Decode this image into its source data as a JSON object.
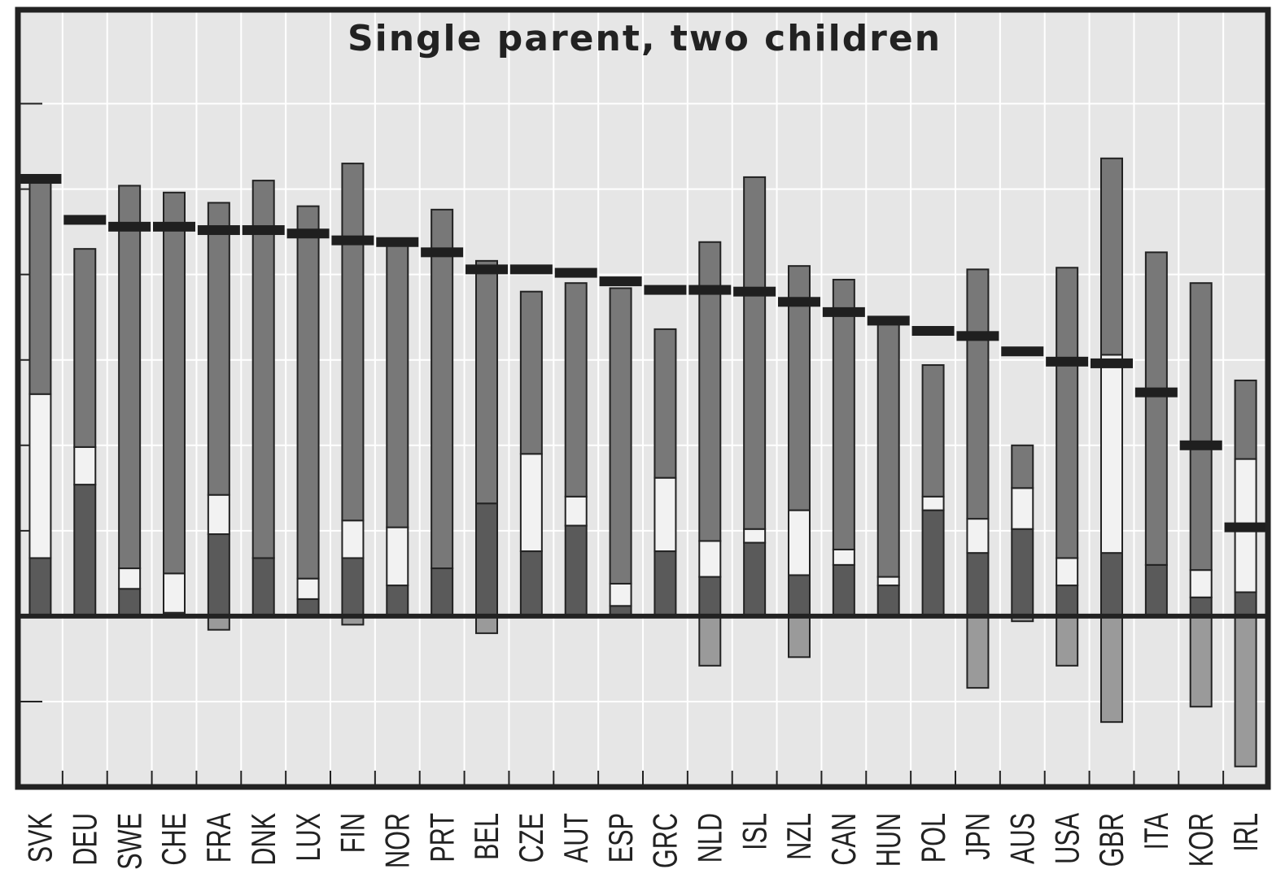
{
  "chart_data": {
    "type": "bar",
    "title": "Single parent, two children",
    "xlabel": "",
    "ylabel": "",
    "ylim": [
      -100,
      355
    ],
    "grid": true,
    "categories": [
      "SVK",
      "DEU",
      "SWE",
      "CHE",
      "FRA",
      "DNK",
      "LUX",
      "FIN",
      "NOR",
      "PRT",
      "BEL",
      "CZE",
      "AUT",
      "ESP",
      "GRC",
      "NLD",
      "ISL",
      "NZL",
      "CAN",
      "HUN",
      "POL",
      "JPN",
      "AUS",
      "USA",
      "GBR",
      "ITA",
      "KOR",
      "IRL"
    ],
    "series": [
      {
        "values": [
          34,
          77,
          16,
          2,
          48,
          34,
          10,
          34,
          18,
          28,
          66,
          38,
          53,
          6,
          38,
          23,
          43,
          24,
          30,
          18,
          62,
          37,
          51,
          18,
          37,
          30,
          11,
          14
        ]
      },
      {
        "values": [
          96,
          22,
          12,
          23,
          23,
          0,
          12,
          22,
          34,
          0,
          0,
          57,
          17,
          13,
          43,
          21,
          8,
          38,
          9,
          5,
          8,
          20,
          24,
          16,
          116,
          0,
          16,
          78
        ]
      },
      {
        "values": [
          128,
          116,
          224,
          223,
          171,
          221,
          218,
          209,
          169,
          210,
          142,
          95,
          125,
          173,
          87,
          175,
          206,
          143,
          158,
          148,
          77,
          146,
          25,
          170,
          115,
          183,
          168,
          46
        ]
      },
      {
        "values": [
          0,
          0,
          0,
          0,
          -8,
          0,
          0,
          -5,
          0,
          0,
          -10,
          0,
          0,
          0,
          0,
          -29,
          0,
          -24,
          0,
          0,
          0,
          -42,
          -3,
          -29,
          -62,
          0,
          -53,
          -88
        ]
      }
    ],
    "markers": [
      256,
      232,
      228,
      228,
      226,
      226,
      224,
      220,
      219,
      213,
      203,
      203,
      201,
      196,
      191,
      191,
      190,
      184,
      178,
      173,
      167,
      164,
      155,
      149,
      148,
      131,
      100,
      52
    ]
  },
  "colors": {
    "plot_bg": "#e6e6e6",
    "grid": "#ffffff",
    "frame": "#222222",
    "series": [
      "#5a5a5a",
      "#f2f2f2",
      "#787878",
      "#9a9a9a"
    ],
    "marker": "#1f1f1f"
  }
}
